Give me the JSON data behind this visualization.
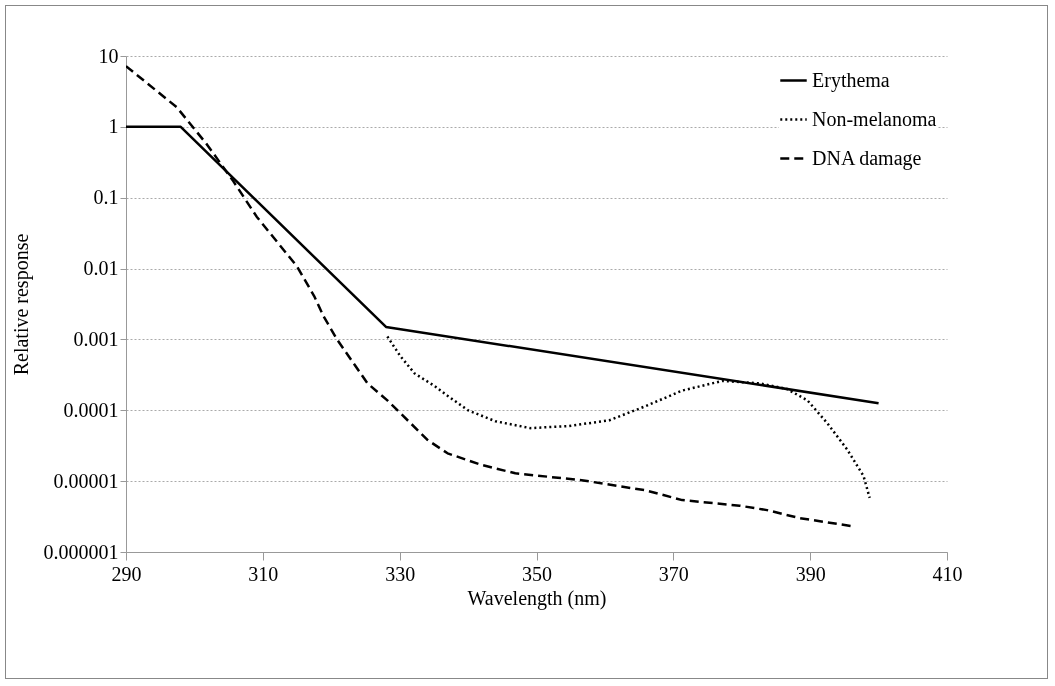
{
  "chart_data": {
    "type": "line",
    "xlabel": "Wavelength (nm)",
    "ylabel": "Relative response",
    "log": "y",
    "grid": "y",
    "legend": "top right",
    "xlim": [
      290,
      410
    ],
    "xticks": [
      290,
      310,
      330,
      350,
      370,
      390,
      410
    ],
    "ylim": [
      1e-06,
      10
    ],
    "yticks": [
      {
        "value": 1e-06,
        "label": "0.000001"
      },
      {
        "value": 1e-05,
        "label": "0.00001"
      },
      0.0001,
      0.001,
      0.01,
      0.1,
      1,
      10
    ],
    "series": [
      {
        "name": "Erythema",
        "color": "#000000",
        "line_style": "solid",
        "x": [
          290,
          298,
          328,
          400
        ],
        "values": [
          1,
          1,
          0.0015,
          0.000126
        ]
      },
      {
        "name": "Non-melanoma",
        "color": "#000000",
        "line_style": "dotted",
        "x": [
          328.2,
          330.1,
          332.2,
          335.1,
          337,
          340,
          344,
          349.1,
          354.7,
          360.6,
          366,
          371.3,
          377.2,
          382.6,
          386.6,
          389.6,
          392.5,
          395.4,
          397.8,
          398.7
        ],
        "values": [
          0.0011,
          0.00058,
          0.00033,
          0.00022,
          0.00016,
          0.0001,
          7e-05,
          5.6e-05,
          6e-05,
          7.2e-05,
          0.000115,
          0.00019,
          0.00026,
          0.00024,
          0.0002,
          0.000138,
          6.6e-05,
          2.8e-05,
          1.18e-05,
          5.8e-06
        ]
      },
      {
        "name": "DNA damage",
        "color": "#000000",
        "line_style": "dashed",
        "x": [
          290,
          297.4,
          301.8,
          305.7,
          309.1,
          315,
          317.5,
          318.9,
          320.9,
          325.3,
          328.2,
          334.1,
          337,
          341.9,
          346.9,
          356.6,
          366,
          371.3,
          379.7,
          383.7,
          388.5,
          396.3
        ],
        "values": [
          7.2,
          1.9,
          0.57,
          0.17,
          0.054,
          0.0107,
          0.0041,
          0.0021,
          0.00098,
          0.00024,
          0.000138,
          3.8e-05,
          2.47e-05,
          1.7e-05,
          1.29e-05,
          1.03e-05,
          7.4e-06,
          5.4e-06,
          4.5e-06,
          3.9e-06,
          3e-06,
          2.3e-06
        ]
      }
    ]
  }
}
